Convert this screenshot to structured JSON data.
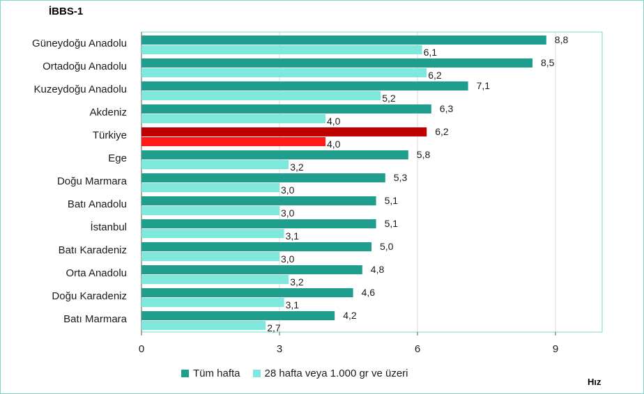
{
  "chart_data": {
    "type": "bar",
    "orientation": "horizontal",
    "title": "İBBS-1",
    "unit_label": "Hız",
    "categories": [
      "Güneydoğu Anadolu",
      "Ortadoğu Anadolu",
      "Kuzeydoğu Anadolu",
      "Akdeniz",
      "Türkiye",
      "Ege",
      "Doğu Marmara",
      "Batı Anadolu",
      "İstanbul",
      "Batı Karadeniz",
      "Orta Anadolu",
      "Doğu Karadeniz",
      "Batı Marmara"
    ],
    "value_labels": {
      "series1": [
        "8,8",
        "8,5",
        "7,1",
        "6,3",
        "6,2",
        "5,8",
        "5,3",
        "5,1",
        "5,1",
        "5,0",
        "4,8",
        "4,6",
        "4,2"
      ],
      "series2": [
        "6,1",
        "6,2",
        "5,2",
        "4,0",
        "4,0",
        "3,2",
        "3,0",
        "3,0",
        "3,1",
        "3,0",
        "3,2",
        "3,1",
        "2,7"
      ]
    },
    "series": [
      {
        "name": "Tüm hafta",
        "values": [
          8.8,
          8.5,
          7.1,
          6.3,
          6.2,
          5.8,
          5.3,
          5.1,
          5.1,
          5.0,
          4.8,
          4.6,
          4.2
        ],
        "color": "#1f9e8e",
        "highlight_color": "#c00000"
      },
      {
        "name": "28 hafta veya 1.000 gr ve üzeri",
        "values": [
          6.1,
          6.2,
          5.2,
          4.0,
          4.0,
          3.2,
          3.0,
          3.0,
          3.1,
          3.0,
          3.2,
          3.1,
          2.7
        ],
        "color": "#7fe8dc",
        "highlight_color": "#ff1a1a"
      }
    ],
    "highlight_category": "Türkiye",
    "xlim": [
      0,
      10
    ],
    "xticks": [
      0,
      3,
      6,
      9
    ],
    "xtick_labels": [
      "0",
      "3",
      "6",
      "9"
    ],
    "grid": "vertical",
    "legend_position": "bottom"
  }
}
